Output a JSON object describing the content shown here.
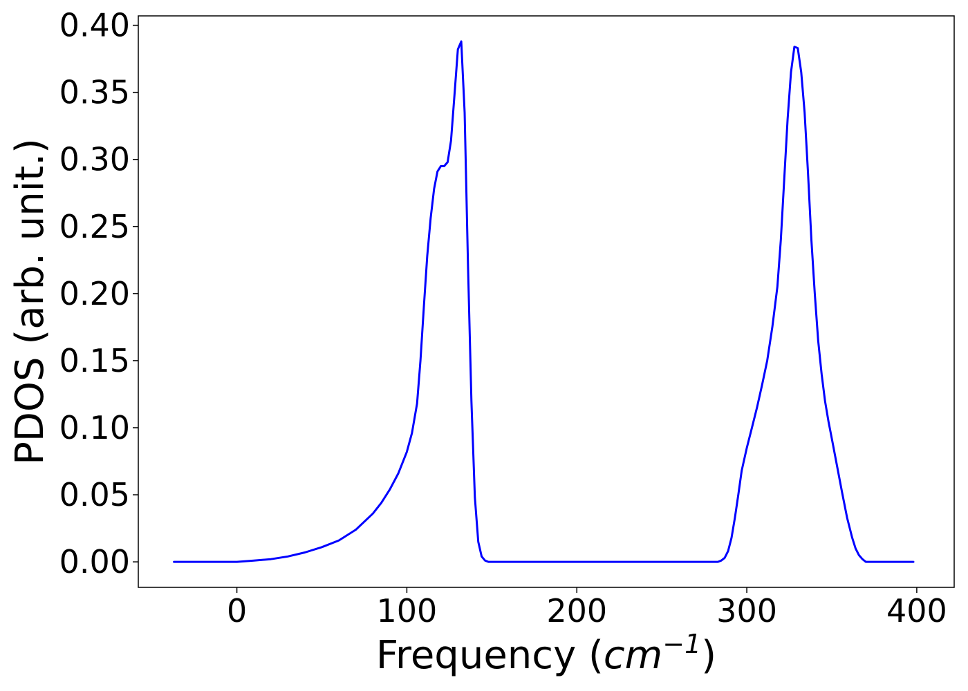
{
  "chart_data": {
    "type": "line",
    "xlabel": "Frequency (",
    "xlabel_math_base": "cm",
    "xlabel_math_exp": "−1",
    "xlabel_suffix": ")",
    "ylabel": "PDOS (arb. unit.)",
    "xlim": [
      -58,
      422
    ],
    "ylim": [
      -0.019,
      0.407
    ],
    "xticks": [
      0,
      100,
      200,
      300,
      400
    ],
    "yticks": [
      0.0,
      0.05,
      0.1,
      0.15,
      0.2,
      0.25,
      0.3,
      0.35,
      0.4
    ],
    "xtick_labels": [
      "0",
      "100",
      "200",
      "300",
      "400"
    ],
    "ytick_labels": [
      "0.00",
      "0.05",
      "0.10",
      "0.15",
      "0.20",
      "0.25",
      "0.30",
      "0.35",
      "0.40"
    ],
    "grid": false,
    "series": [
      {
        "color": "#0000ff",
        "x": [
          -37,
          -20,
          -10,
          0,
          10,
          20,
          30,
          40,
          50,
          60,
          70,
          80,
          85,
          90,
          95,
          100,
          103,
          106,
          108,
          110,
          112,
          114,
          116,
          118,
          120,
          122,
          124,
          126,
          128,
          130,
          132,
          134,
          136,
          138,
          140,
          142,
          144,
          146,
          148,
          150,
          155,
          160,
          200,
          250,
          283,
          285,
          287,
          289,
          291,
          293,
          295,
          297,
          300,
          303,
          306,
          309,
          312,
          315,
          318,
          320,
          322,
          324,
          326,
          328,
          330,
          332,
          334,
          336,
          338,
          340,
          342,
          344,
          346,
          348,
          350,
          353,
          356,
          359,
          362,
          364,
          366,
          368,
          370,
          375,
          380,
          398
        ],
        "y": [
          0.0,
          0.0,
          0.0,
          0.0,
          0.001,
          0.002,
          0.004,
          0.007,
          0.011,
          0.016,
          0.024,
          0.036,
          0.044,
          0.054,
          0.066,
          0.082,
          0.096,
          0.118,
          0.15,
          0.19,
          0.228,
          0.256,
          0.278,
          0.291,
          0.295,
          0.295,
          0.298,
          0.314,
          0.348,
          0.382,
          0.388,
          0.335,
          0.22,
          0.12,
          0.048,
          0.015,
          0.004,
          0.001,
          0.0,
          0.0,
          0.0,
          0.0,
          0.0,
          0.0,
          0.0,
          0.001,
          0.003,
          0.008,
          0.018,
          0.033,
          0.05,
          0.068,
          0.085,
          0.1,
          0.115,
          0.132,
          0.15,
          0.175,
          0.205,
          0.24,
          0.285,
          0.33,
          0.365,
          0.384,
          0.383,
          0.365,
          0.335,
          0.29,
          0.24,
          0.2,
          0.165,
          0.14,
          0.12,
          0.105,
          0.092,
          0.072,
          0.052,
          0.033,
          0.018,
          0.01,
          0.005,
          0.002,
          0.0,
          0.0,
          0.0,
          0.0
        ]
      }
    ]
  }
}
